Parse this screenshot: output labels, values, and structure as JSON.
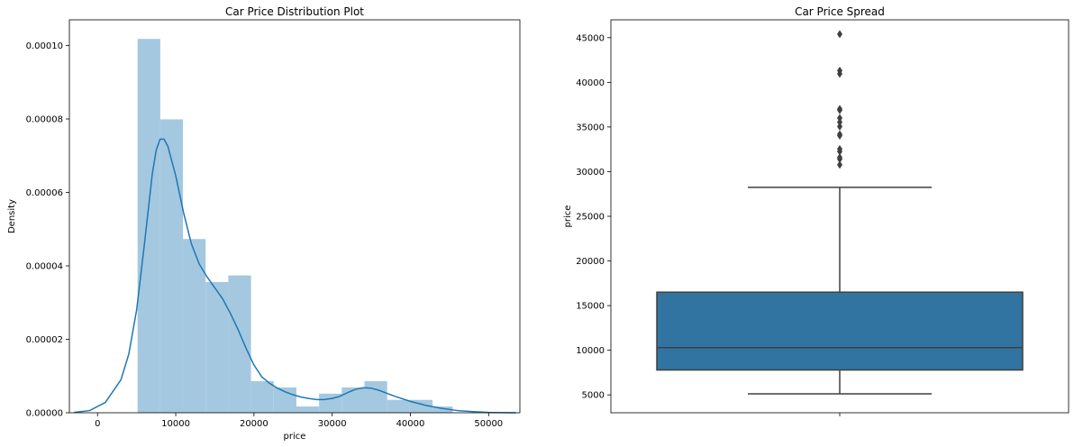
{
  "chart_data": [
    {
      "type": "histogram",
      "title": "Car Price Distribution Plot",
      "xlabel": "price",
      "ylabel": "Density",
      "xlim": [
        -3600,
        54000
      ],
      "ylim": [
        0,
        0.000107
      ],
      "xticks": [
        0,
        10000,
        20000,
        30000,
        40000,
        50000
      ],
      "xtick_labels": [
        "0",
        "10000",
        "20000",
        "30000",
        "40000",
        "50000"
      ],
      "yticks": [
        0,
        2e-05,
        4e-05,
        6e-05,
        8e-05,
        0.0001
      ],
      "ytick_labels": [
        "0.00000",
        "0.00002",
        "0.00004",
        "0.00006",
        "0.00008",
        "0.00010"
      ],
      "bins": [
        {
          "x0": 5118,
          "x1": 8019,
          "density": 0.0001018
        },
        {
          "x0": 8019,
          "x1": 10920,
          "density": 7.99e-05
        },
        {
          "x0": 10920,
          "x1": 13821,
          "density": 4.73e-05
        },
        {
          "x0": 13821,
          "x1": 16722,
          "density": 3.56e-05
        },
        {
          "x0": 16722,
          "x1": 19623,
          "density": 3.74e-05
        },
        {
          "x0": 19623,
          "x1": 22524,
          "density": 8.6e-06
        },
        {
          "x0": 22524,
          "x1": 25425,
          "density": 6.9e-06
        },
        {
          "x0": 25425,
          "x1": 28326,
          "density": 1.7e-06
        },
        {
          "x0": 28326,
          "x1": 31227,
          "density": 5.2e-06
        },
        {
          "x0": 31227,
          "x1": 34128,
          "density": 6.9e-06
        },
        {
          "x0": 34128,
          "x1": 37029,
          "density": 8.6e-06
        },
        {
          "x0": 37029,
          "x1": 39930,
          "density": 3.5e-06
        },
        {
          "x0": 39930,
          "x1": 42831,
          "density": 3.5e-06
        },
        {
          "x0": 42831,
          "x1": 45400,
          "density": 1.7e-06
        }
      ],
      "kde": {
        "x": [
          -3000,
          -1000,
          1000,
          3000,
          4000,
          5000,
          6000,
          7000,
          7500,
          8000,
          8500,
          9000,
          10000,
          11000,
          12000,
          13000,
          14000,
          15000,
          16000,
          17000,
          18000,
          19000,
          20000,
          21000,
          22000,
          23000,
          24000,
          25000,
          26000,
          27000,
          28000,
          29000,
          30000,
          31000,
          32000,
          33000,
          34000,
          35000,
          36000,
          37000,
          38000,
          40000,
          42000,
          44000,
          46000,
          48000,
          50000,
          52000,
          53500
        ],
        "y": [
          1e-07,
          6e-07,
          2.8e-06,
          9e-06,
          1.6e-05,
          2.8e-05,
          4.6e-05,
          6.5e-05,
          7.15e-05,
          7.45e-05,
          7.45e-05,
          7.25e-05,
          6.45e-05,
          5.45e-05,
          4.6e-05,
          4.05e-05,
          3.7e-05,
          3.4e-05,
          3.1e-05,
          2.7e-05,
          2.25e-05,
          1.75e-05,
          1.3e-05,
          9.8e-06,
          8e-06,
          6.7e-06,
          5.7e-06,
          4.9e-06,
          4.3e-06,
          3.9e-06,
          3.6e-06,
          3.6e-06,
          3.9e-06,
          4.5e-06,
          5.5e-06,
          6.4e-06,
          6.8e-06,
          6.7e-06,
          6.1e-06,
          5.3e-06,
          4.5e-06,
          3.1e-06,
          2e-06,
          1.2e-06,
          6e-07,
          3e-07,
          1e-07,
          3e-08,
          1e-08
        ]
      },
      "bar_color": "#a4c8e0",
      "line_color": "#1f77b4",
      "grid": false
    },
    {
      "type": "box",
      "title": "Car Price Spread",
      "xlabel": "",
      "ylabel": "price",
      "ylim": [
        3000,
        47000
      ],
      "yticks": [
        5000,
        10000,
        15000,
        20000,
        25000,
        30000,
        35000,
        40000,
        45000
      ],
      "ytick_labels": [
        "5000",
        "10000",
        "15000",
        "20000",
        "25000",
        "30000",
        "35000",
        "40000",
        "45000"
      ],
      "whisker_low": 5118,
      "q1": 7788,
      "median": 10295,
      "q3": 16503,
      "whisker_high": 28248,
      "outliers": [
        30760,
        31400,
        31600,
        32250,
        32528,
        34028,
        34184,
        35056,
        35550,
        36000,
        36880,
        37028,
        40960,
        41315,
        45400
      ],
      "box_color": "#3274a1",
      "line_color": "#3f3f3f",
      "grid": false
    }
  ]
}
